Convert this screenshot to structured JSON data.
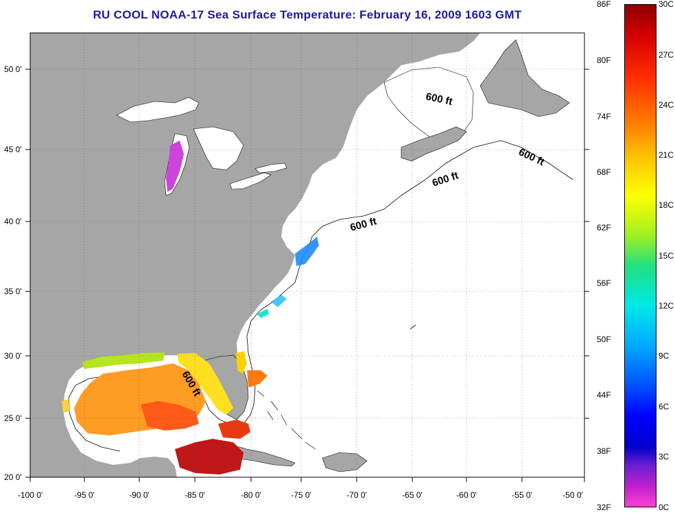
{
  "title": "RU COOL  NOAA-17  Sea Surface Temperature:  February 16, 2009 1603 GMT",
  "longitude_labels": [
    "-100 0'",
    "-95 0'",
    "-90 0'",
    "-85 0'",
    "-80 0'",
    "-75 0'",
    "-70 0'",
    "-65 0'",
    "-60 0'",
    "-55 0'",
    "-50 0'"
  ],
  "latitude_labels": [
    "50 0'",
    "45 0'",
    "40 0'",
    "35 0'",
    "30 0'",
    "25 0'",
    "20 0'"
  ],
  "isobath_label": "600 ft",
  "colorbar": {
    "fahrenheit_labels": [
      "86F",
      "80F",
      "74F",
      "68F",
      "62F",
      "56F",
      "50F",
      "44F",
      "38F",
      "32F"
    ],
    "celsius_labels": [
      "30C",
      "27C",
      "24C",
      "21C",
      "18C",
      "15C",
      "12C",
      "9C",
      "6C",
      "3C",
      "0C"
    ]
  },
  "colors": {
    "land": "#a6a6a6",
    "title": "#1a1aa6"
  }
}
